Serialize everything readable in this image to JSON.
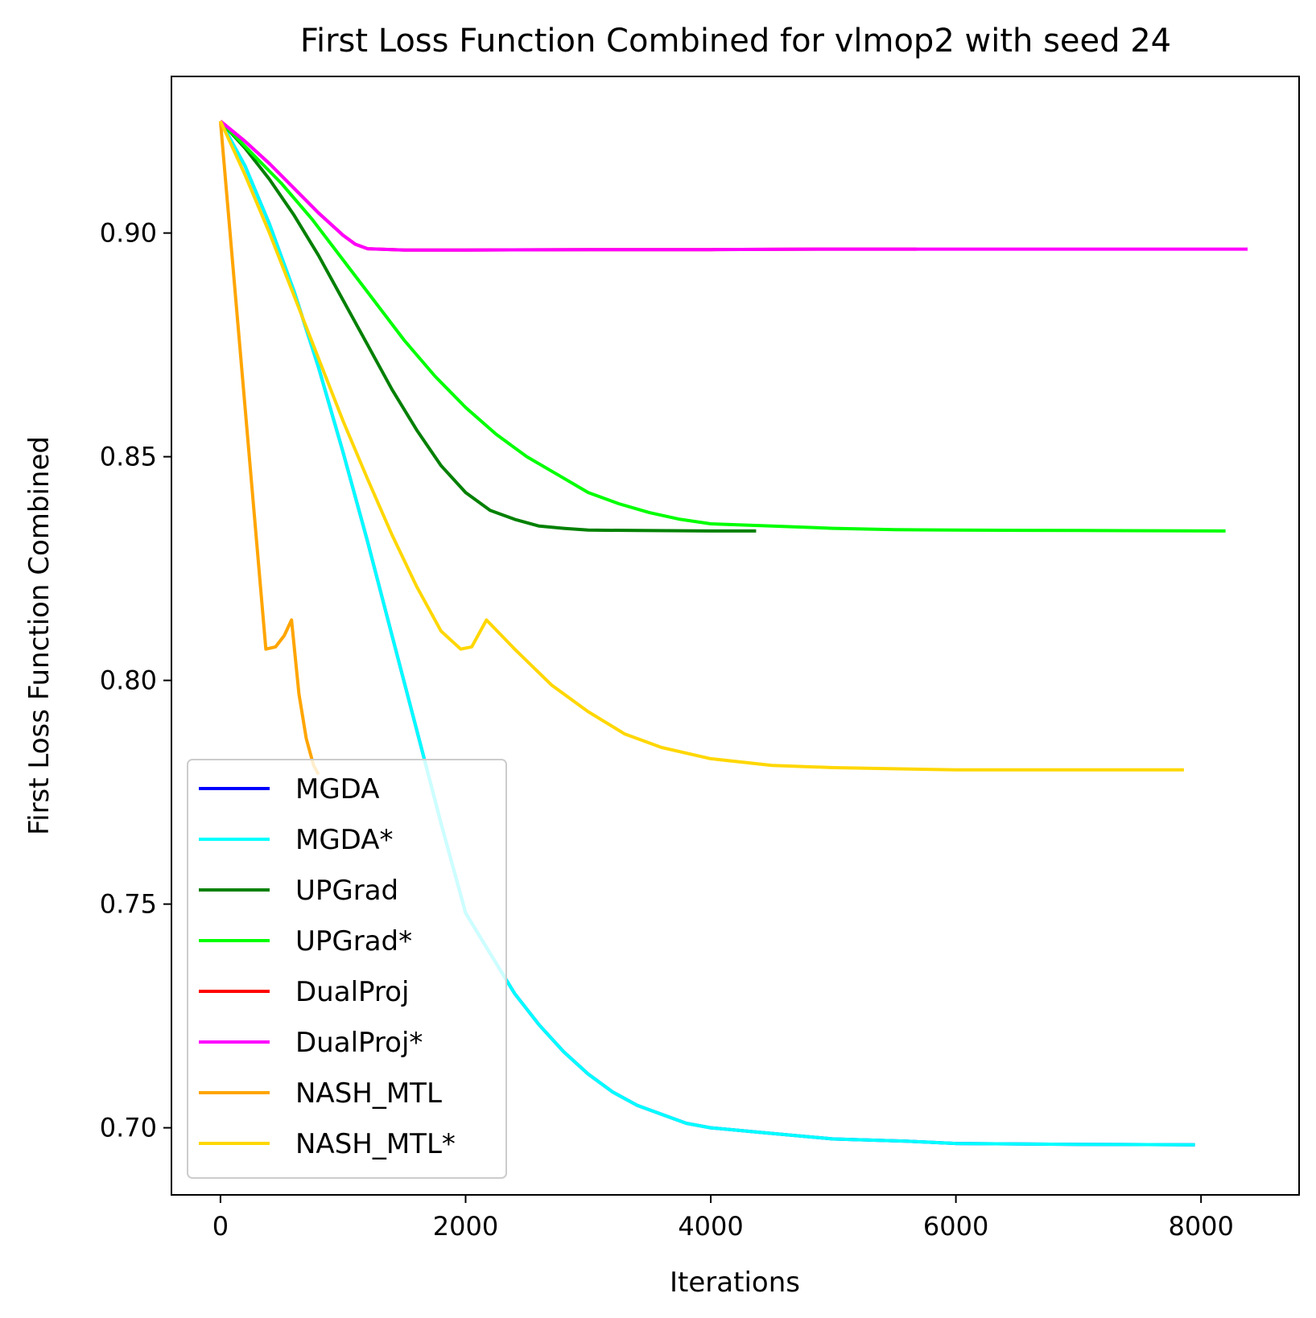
{
  "chart_data": {
    "type": "line",
    "title": "First Loss Function Combined for vlmop2 with seed 24",
    "xlabel": "Iterations",
    "ylabel": "First Loss Function Combined",
    "xlim": [
      -400,
      8800
    ],
    "ylim": [
      0.685,
      0.935
    ],
    "xticks": [
      0,
      2000,
      4000,
      6000,
      8000
    ],
    "xtick_labels": [
      "0",
      "2000",
      "4000",
      "6000",
      "8000"
    ],
    "yticks": [
      0.7,
      0.75,
      0.8,
      0.85,
      0.9
    ],
    "ytick_labels": [
      "0.70",
      "0.75",
      "0.80",
      "0.85",
      "0.90"
    ],
    "grid": false,
    "legend_position": "lower-left",
    "series": [
      {
        "name": "MGDA",
        "color": "#0000ff",
        "points": [
          [
            0,
            0.925
          ],
          [
            200,
            0.915
          ],
          [
            400,
            0.902
          ],
          [
            600,
            0.887
          ],
          [
            800,
            0.87
          ],
          [
            1000,
            0.851
          ],
          [
            1200,
            0.831
          ],
          [
            1400,
            0.81
          ],
          [
            1600,
            0.789
          ],
          [
            1800,
            0.768
          ],
          [
            2000,
            0.748
          ],
          [
            2200,
            0.739
          ],
          [
            2400,
            0.73
          ],
          [
            2600,
            0.723
          ],
          [
            2800,
            0.717
          ],
          [
            3000,
            0.712
          ],
          [
            3200,
            0.708
          ],
          [
            3400,
            0.705
          ],
          [
            3600,
            0.703
          ],
          [
            3800,
            0.701
          ],
          [
            4000,
            0.7
          ],
          [
            4400,
            0.699
          ],
          [
            5000,
            0.6975
          ],
          [
            5600,
            0.697
          ],
          [
            6000,
            0.6965
          ],
          [
            7000,
            0.6963
          ],
          [
            7950,
            0.6962
          ]
        ]
      },
      {
        "name": "MGDA*",
        "color": "#00ffff",
        "points": [
          [
            0,
            0.925
          ],
          [
            200,
            0.915
          ],
          [
            400,
            0.902
          ],
          [
            600,
            0.887
          ],
          [
            800,
            0.87
          ],
          [
            1000,
            0.851
          ],
          [
            1200,
            0.831
          ],
          [
            1400,
            0.81
          ],
          [
            1600,
            0.789
          ],
          [
            1800,
            0.768
          ],
          [
            2000,
            0.748
          ],
          [
            2200,
            0.739
          ],
          [
            2400,
            0.73
          ],
          [
            2600,
            0.723
          ],
          [
            2800,
            0.717
          ],
          [
            3000,
            0.712
          ],
          [
            3200,
            0.708
          ],
          [
            3400,
            0.705
          ],
          [
            3600,
            0.703
          ],
          [
            3800,
            0.701
          ],
          [
            4000,
            0.7
          ],
          [
            4400,
            0.699
          ],
          [
            5000,
            0.6975
          ],
          [
            5600,
            0.697
          ],
          [
            6000,
            0.6965
          ],
          [
            7000,
            0.6963
          ],
          [
            7950,
            0.6962
          ]
        ]
      },
      {
        "name": "UPGrad",
        "color": "#008000",
        "points": [
          [
            0,
            0.925
          ],
          [
            200,
            0.919
          ],
          [
            400,
            0.912
          ],
          [
            600,
            0.904
          ],
          [
            800,
            0.895
          ],
          [
            1000,
            0.885
          ],
          [
            1200,
            0.875
          ],
          [
            1400,
            0.865
          ],
          [
            1600,
            0.856
          ],
          [
            1800,
            0.848
          ],
          [
            2000,
            0.842
          ],
          [
            2200,
            0.838
          ],
          [
            2400,
            0.836
          ],
          [
            2600,
            0.8345
          ],
          [
            2800,
            0.834
          ],
          [
            3000,
            0.8336
          ],
          [
            3400,
            0.8335
          ],
          [
            4000,
            0.8334
          ],
          [
            4370,
            0.8334
          ]
        ]
      },
      {
        "name": "UPGrad*",
        "color": "#00ff00",
        "points": [
          [
            0,
            0.925
          ],
          [
            250,
            0.918
          ],
          [
            500,
            0.911
          ],
          [
            750,
            0.903
          ],
          [
            1000,
            0.894
          ],
          [
            1250,
            0.885
          ],
          [
            1500,
            0.876
          ],
          [
            1750,
            0.868
          ],
          [
            2000,
            0.861
          ],
          [
            2250,
            0.855
          ],
          [
            2500,
            0.85
          ],
          [
            2750,
            0.846
          ],
          [
            3000,
            0.842
          ],
          [
            3250,
            0.8395
          ],
          [
            3500,
            0.8375
          ],
          [
            3750,
            0.836
          ],
          [
            4000,
            0.835
          ],
          [
            4500,
            0.8345
          ],
          [
            5000,
            0.834
          ],
          [
            5500,
            0.8337
          ],
          [
            6000,
            0.8336
          ],
          [
            7000,
            0.8335
          ],
          [
            8200,
            0.8334
          ]
        ]
      },
      {
        "name": "DualProj",
        "color": "#ff0000",
        "points": [
          [
            0,
            0.925
          ],
          [
            200,
            0.9205
          ],
          [
            400,
            0.9155
          ],
          [
            600,
            0.91
          ],
          [
            800,
            0.9045
          ],
          [
            1000,
            0.8995
          ],
          [
            1100,
            0.8975
          ],
          [
            1200,
            0.8965
          ],
          [
            1500,
            0.8962
          ],
          [
            2000,
            0.8962
          ],
          [
            3000,
            0.8963
          ],
          [
            4000,
            0.8963
          ],
          [
            5000,
            0.8964
          ],
          [
            5680,
            0.8964
          ]
        ]
      },
      {
        "name": "DualProj*",
        "color": "#ff00ff",
        "points": [
          [
            0,
            0.925
          ],
          [
            200,
            0.9205
          ],
          [
            400,
            0.9155
          ],
          [
            600,
            0.91
          ],
          [
            800,
            0.9045
          ],
          [
            1000,
            0.8995
          ],
          [
            1100,
            0.8975
          ],
          [
            1200,
            0.8965
          ],
          [
            1500,
            0.8962
          ],
          [
            2000,
            0.8962
          ],
          [
            3000,
            0.8963
          ],
          [
            4000,
            0.8963
          ],
          [
            5000,
            0.8964
          ],
          [
            6000,
            0.8964
          ],
          [
            7000,
            0.8964
          ],
          [
            8380,
            0.8964
          ]
        ]
      },
      {
        "name": "NASH_MTL",
        "color": "#ffa500",
        "points": [
          [
            0,
            0.925
          ],
          [
            370,
            0.807
          ],
          [
            450,
            0.8075
          ],
          [
            520,
            0.81
          ],
          [
            580,
            0.8135
          ],
          [
            640,
            0.797
          ],
          [
            700,
            0.787
          ],
          [
            760,
            0.781
          ],
          [
            800,
            0.779
          ]
        ]
      },
      {
        "name": "NASH_MTL*",
        "color": "#ffd700",
        "points": [
          [
            0,
            0.925
          ],
          [
            200,
            0.913
          ],
          [
            400,
            0.9
          ],
          [
            600,
            0.886
          ],
          [
            800,
            0.872
          ],
          [
            1000,
            0.858
          ],
          [
            1200,
            0.845
          ],
          [
            1400,
            0.8325
          ],
          [
            1600,
            0.821
          ],
          [
            1800,
            0.811
          ],
          [
            1960,
            0.807
          ],
          [
            2050,
            0.8075
          ],
          [
            2100,
            0.81
          ],
          [
            2170,
            0.8135
          ],
          [
            2400,
            0.807
          ],
          [
            2700,
            0.799
          ],
          [
            3000,
            0.793
          ],
          [
            3300,
            0.788
          ],
          [
            3600,
            0.785
          ],
          [
            4000,
            0.7825
          ],
          [
            4500,
            0.781
          ],
          [
            5000,
            0.7805
          ],
          [
            6000,
            0.78
          ],
          [
            7000,
            0.78
          ],
          [
            7860,
            0.78
          ]
        ]
      }
    ]
  }
}
